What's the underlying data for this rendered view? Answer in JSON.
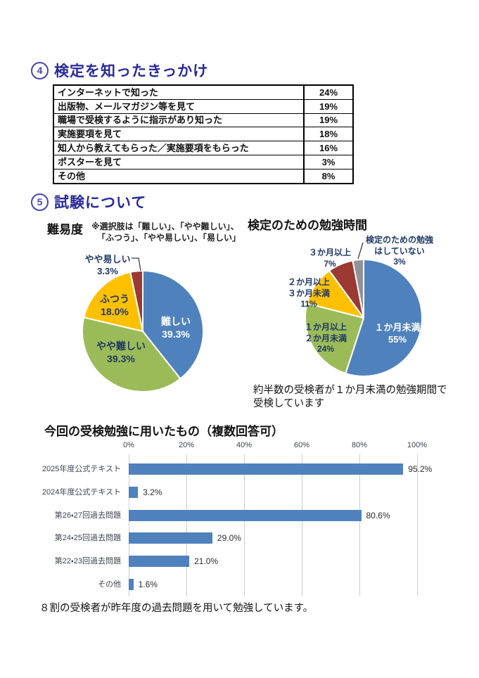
{
  "section4": {
    "number": "4",
    "title": "検定を知ったきっかけ",
    "table": {
      "rows": [
        {
          "label": "インターネットで知った",
          "value": "24%"
        },
        {
          "label": "出版物、メールマガジン等を見て",
          "value": "19%"
        },
        {
          "label": "職場で受検するように指示があり知った",
          "value": "19%"
        },
        {
          "label": "実施要項を見て",
          "value": "18%"
        },
        {
          "label": "知人から教えてもらった／実施要項をもらった",
          "value": "16%"
        },
        {
          "label": "ポスターを見て",
          "value": "3%"
        },
        {
          "label": "その他",
          "value": "8%"
        }
      ]
    }
  },
  "section5": {
    "number": "5",
    "title": "試験について",
    "difficulty_heading": "難易度",
    "note_line1": "※選択肢は「難しい」、「やや難しい」、",
    "note_line2": "「ふつう」、「やや易しい」、「易しい」",
    "study_time_heading": "検定のための勉強時間",
    "caption_line1": "約半数の受検者が１か月未満の勉強期間で",
    "caption_line2": "受検しています"
  },
  "materials_section": {
    "title": "今回の受検勉強に用いたもの（複数回答可）",
    "footnote": "８割の受検者が昨年度の過去問題を用いて勉強しています。"
  },
  "chart_data": [
    {
      "id": "difficulty-pie",
      "type": "pie",
      "title": "難易度",
      "labels": [
        "難しい",
        "やや難しい",
        "ふつう",
        "やや易しい"
      ],
      "values": [
        39.3,
        39.3,
        18.0,
        3.3
      ],
      "value_labels": [
        "39.3%",
        "39.3%",
        "18.0%",
        "3.3%"
      ],
      "colors": [
        "#4F81BD",
        "#9BBB59",
        "#FFC000",
        "#9B3A33"
      ],
      "start_angle_deg": 0,
      "direction": "clockwise",
      "legend": "none"
    },
    {
      "id": "study-time-pie",
      "type": "pie",
      "title": "検定のための勉強時間",
      "labels": [
        "１か月未満",
        "１か月以上２か月未満",
        "２か月以上３か月未満",
        "３か月以上",
        "検定のための勉強はしていない"
      ],
      "label_lines": [
        [
          "１か月未満"
        ],
        [
          "１か月以上",
          "２か月未満"
        ],
        [
          "２か月以上",
          "３か月未満"
        ],
        [
          "３か月以上"
        ],
        [
          "検定のための勉強",
          "はしていない"
        ]
      ],
      "values": [
        55,
        24,
        11,
        7,
        3
      ],
      "value_labels": [
        "55%",
        "24%",
        "11%",
        "7%",
        "3%"
      ],
      "colors": [
        "#4F81BD",
        "#9BBB59",
        "#FFC000",
        "#9B3A33",
        "#919396"
      ],
      "start_angle_deg": 0,
      "direction": "clockwise",
      "legend": "none"
    },
    {
      "id": "materials-bar",
      "type": "bar",
      "orientation": "horizontal",
      "title": "今回の受検勉強に用いたもの（複数回答可）",
      "categories": [
        "2025年度公式テキスト",
        "2024年度公式テキスト",
        "第26・27回過去問題",
        "第24・25回過去問題",
        "第22・23回過去問題",
        "その他"
      ],
      "values": [
        95.2,
        3.2,
        80.6,
        29.0,
        21.0,
        1.6
      ],
      "value_labels": [
        "95.2%",
        "3.2%",
        "80.6%",
        "29.0%",
        "21.0%",
        "1.6%"
      ],
      "x_ticks": [
        "0%",
        "20%",
        "40%",
        "60%",
        "80%",
        "100%"
      ],
      "xlim": [
        0,
        100
      ],
      "bar_color": "#4F81BD",
      "grid": "vertical"
    }
  ]
}
